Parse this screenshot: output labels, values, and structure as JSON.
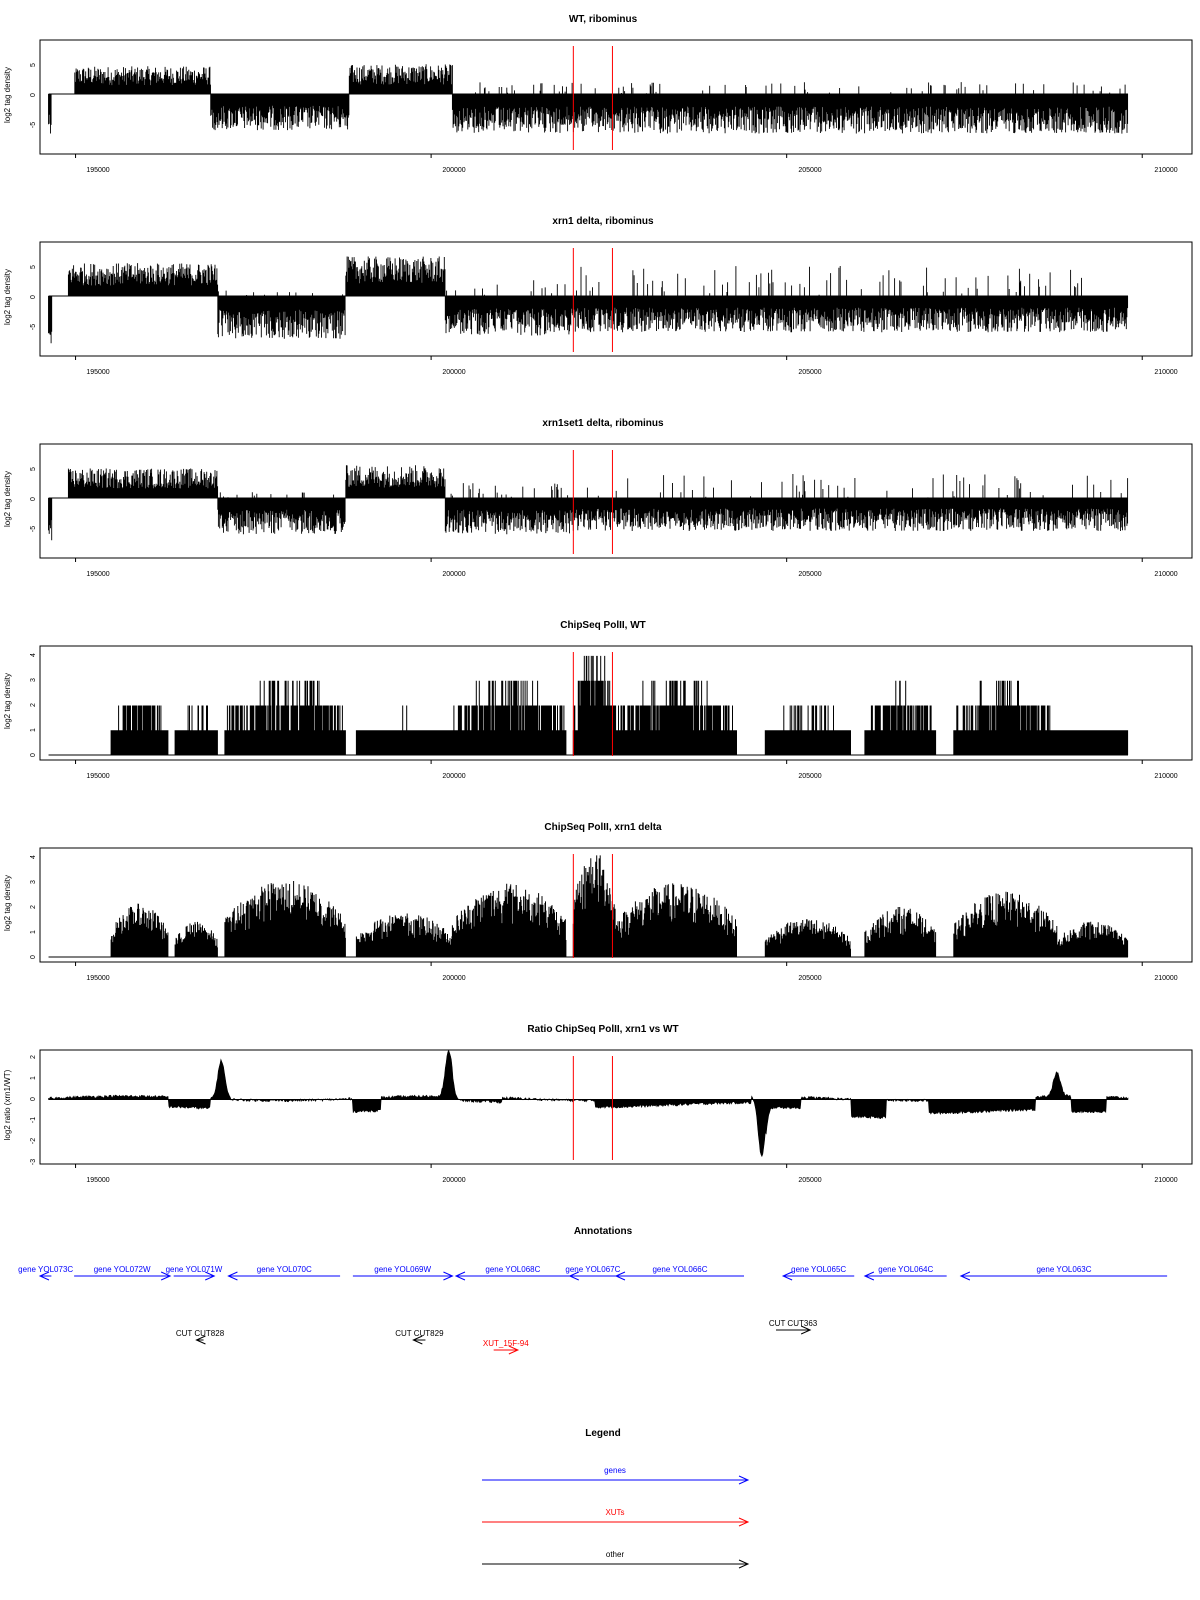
{
  "chart_data": [
    {
      "type": "bar",
      "title": "WT, ribominus",
      "ylabel": "log2 tag density",
      "xlabel": "",
      "xlim": [
        194500,
        210700
      ],
      "ylim": [
        -10,
        9
      ],
      "xticks": [
        "195000",
        "200000",
        "205000",
        "210000"
      ],
      "yticks": [
        "-5",
        "0",
        "5"
      ],
      "series": [
        {
          "values_description_segments": [
            {
              "x": [
                194640,
                194660
              ],
              "y": [
                -6,
                0
              ]
            },
            {
              "x": [
                195000,
                197000
              ],
              "y": [
                0,
                4.5
              ]
            },
            {
              "x": [
                197000,
                198800
              ],
              "y": [
                -6,
                0
              ]
            },
            {
              "x": [
                198800,
                200300
              ],
              "y": [
                0,
                5
              ]
            },
            {
              "x": [
                200300,
                209800
              ],
              "y": [
                -7,
                0
              ]
            }
          ]
        }
      ],
      "vlines": [
        202000,
        202550
      ],
      "vline_color": "#ff0000",
      "grid": false
    },
    {
      "type": "bar",
      "title": "xrn1 delta, ribominus",
      "ylabel": "log2 tag density",
      "xlabel": "",
      "xlim": [
        194500,
        210700
      ],
      "ylim": [
        -10,
        9
      ],
      "xticks": [
        "195000",
        "200000",
        "205000",
        "210000"
      ],
      "yticks": [
        "-5",
        "0",
        "5"
      ],
      "vlines": [
        202000,
        202550
      ],
      "vline_color": "#ff0000",
      "grid": false
    },
    {
      "type": "bar",
      "title": "xrn1set1 delta, ribominus",
      "ylabel": "log2 tag density",
      "xlabel": "",
      "xlim": [
        194500,
        210700
      ],
      "ylim": [
        -10,
        9
      ],
      "xticks": [
        "195000",
        "200000",
        "205000",
        "210000"
      ],
      "yticks": [
        "-5",
        "0",
        "5"
      ],
      "vlines": [
        202000,
        202550
      ],
      "vline_color": "#ff0000",
      "grid": false
    },
    {
      "type": "bar",
      "title": "ChipSeq PolII, WT",
      "ylabel": "log2 tag density",
      "xlabel": "",
      "xlim": [
        194500,
        210700
      ],
      "ylim": [
        -0.2,
        4.4
      ],
      "xticks": [
        "195000",
        "200000",
        "205000",
        "210000"
      ],
      "yticks": [
        "0",
        "1",
        "2",
        "3",
        "4"
      ],
      "vlines": [
        202000,
        202550
      ],
      "vline_color": "#ff0000",
      "grid": false
    },
    {
      "type": "bar",
      "title": "ChipSeq PolII, xrn1 delta",
      "ylabel": "log2 tag density",
      "xlabel": "",
      "xlim": [
        194500,
        210700
      ],
      "ylim": [
        -0.2,
        4.4
      ],
      "xticks": [
        "195000",
        "200000",
        "205000",
        "210000"
      ],
      "yticks": [
        "0",
        "1",
        "2",
        "3",
        "4"
      ],
      "vlines": [
        202000,
        202550
      ],
      "vline_color": "#ff0000",
      "grid": false
    },
    {
      "type": "area",
      "title": "Ratio ChipSeq PolII, xrn1 vs WT",
      "ylabel": "log2 ratio (xrn1/WT)",
      "xlabel": "",
      "xlim": [
        194500,
        210700
      ],
      "ylim": [
        -3,
        2.3
      ],
      "xticks": [
        "195000",
        "200000",
        "205000",
        "210000"
      ],
      "yticks": [
        "-3",
        "-2",
        "-1",
        "0",
        "1",
        "2"
      ],
      "peaks": [
        {
          "x": 197050,
          "y": 1.8
        },
        {
          "x": 200250,
          "y": 2.1
        },
        {
          "x": 204650,
          "y": -2.8
        },
        {
          "x": 208800,
          "y": 1.1
        }
      ],
      "vlines": [
        202000,
        202550
      ],
      "vline_color": "#ff0000",
      "grid": false
    }
  ],
  "annotations": {
    "title": "Annotations",
    "genes": [
      {
        "label": "gene YOL073C",
        "start": 194100,
        "end": 194660,
        "strand": "-"
      },
      {
        "label": "gene YOL072W",
        "start": 194980,
        "end": 196330,
        "strand": "+"
      },
      {
        "label": "gene YOL071W",
        "start": 196380,
        "end": 196950,
        "strand": "+"
      },
      {
        "label": "gene YOL070C",
        "start": 197150,
        "end": 198720,
        "strand": "-"
      },
      {
        "label": "gene YOL069W",
        "start": 198900,
        "end": 200300,
        "strand": "+"
      },
      {
        "label": "gene YOL068C",
        "start": 200350,
        "end": 201950,
        "strand": "-"
      },
      {
        "label": "gene YOL067C",
        "start": 201950,
        "end": 202600,
        "strand": "-"
      },
      {
        "label": "gene YOL066C",
        "start": 202600,
        "end": 204400,
        "strand": "-"
      },
      {
        "label": "gene YOL065C",
        "start": 204950,
        "end": 205950,
        "strand": "-"
      },
      {
        "label": "gene YOL064C",
        "start": 206100,
        "end": 207250,
        "strand": "-"
      },
      {
        "label": "gene YOL063C",
        "start": 207450,
        "end": 210350,
        "strand": "-"
      }
    ],
    "cuts": [
      {
        "label": "CUT CUT828",
        "start": 196700,
        "end": 196800,
        "strand": "-"
      },
      {
        "label": "CUT CUT829",
        "start": 199750,
        "end": 199920,
        "strand": "-"
      },
      {
        "label": "CUT CUT363",
        "start": 204850,
        "end": 205330,
        "strand": "+"
      }
    ],
    "xuts": [
      {
        "label": "XUT_15F-94",
        "start": 200880,
        "end": 201220,
        "strand": "+"
      }
    ]
  },
  "legend": {
    "title": "Legend",
    "items": [
      {
        "label": "genes",
        "color": "#0000ff"
      },
      {
        "label": "XUTs",
        "color": "#ff0000"
      },
      {
        "label": "other",
        "color": "#000000"
      }
    ]
  }
}
